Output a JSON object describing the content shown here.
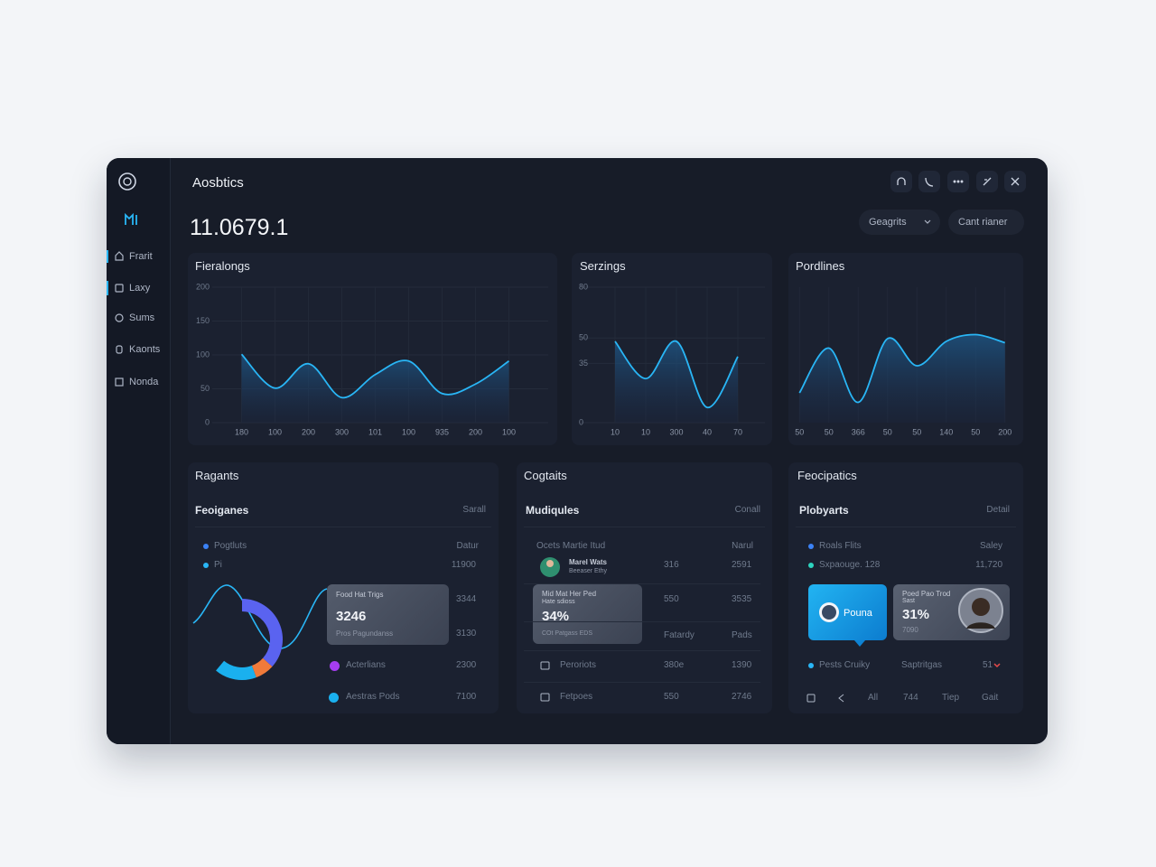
{
  "sidebar": {
    "nav": [
      "Frarit",
      "Laxy",
      "Sums",
      "Kaonts",
      "Nonda"
    ]
  },
  "header": {
    "title": "Aosbtics",
    "total": "11.0679.1",
    "buttons": [
      "Geagrits",
      "Cant rianer"
    ]
  },
  "chart_data": [
    {
      "type": "area",
      "title": "Fieralongs",
      "categories": [
        "180",
        "100",
        "200",
        "300",
        "101",
        "100",
        "935",
        "200",
        "100"
      ],
      "values": [
        101,
        51,
        87,
        37,
        71,
        91,
        43,
        57,
        91
      ],
      "ylim": [
        0,
        200
      ],
      "yticks": [
        0,
        50,
        100,
        150,
        200
      ],
      "color": "#29b6f6",
      "grid": true
    },
    {
      "type": "area",
      "title": "Serzings",
      "categories": [
        "10",
        "10",
        "300",
        "40",
        "70"
      ],
      "values": [
        48,
        26,
        48,
        9,
        39
      ],
      "ylim": [
        0,
        80
      ],
      "yticks": [
        0,
        35,
        50,
        80
      ],
      "color": "#29b6f6",
      "grid": true
    },
    {
      "type": "area",
      "title": "Pordlines",
      "categories": [
        "50",
        "50",
        "366",
        "50",
        "50",
        "140",
        "50",
        "200"
      ],
      "values": [
        22,
        55,
        15,
        62,
        42,
        60,
        65,
        59
      ],
      "ylim": [
        0,
        100
      ],
      "color": "#29b6f6",
      "grid": true
    }
  ],
  "panels": [
    {
      "title": "Ragants",
      "subtitle": "Feoiganes",
      "action": "Sarall",
      "head": [
        "Pogtluts",
        "Datur"
      ],
      "row": [
        "Pi",
        "11900"
      ],
      "card": {
        "label": "Food Hat Trigs",
        "value": "3246",
        "note": "Pros Pagundanss"
      },
      "side": [
        "3344",
        "3130"
      ],
      "legend": [
        [
          "Acterlians",
          "2300"
        ],
        [
          "Aestras Pods",
          "7100"
        ]
      ],
      "donut": {
        "values": [
          48,
          10,
          22
        ],
        "colors": [
          "#5a63f0",
          "#f07a3a",
          "#1ab0ee"
        ]
      }
    },
    {
      "title": "Cogtaits",
      "subtitle": "Mudiqules",
      "action": "Conall",
      "head": [
        "Ocets Martie Itud",
        "Narul"
      ],
      "person": {
        "name": "Marel Wats",
        "role": "Beeaser Ethy",
        "values": [
          "316",
          "2591"
        ]
      },
      "card": {
        "label": "Mid Mat Her Ped",
        "sub": "Hate sdioss",
        "value": "34%",
        "note": "COt Patgass EDS"
      },
      "rows": [
        [
          "550",
          "3535"
        ],
        [
          "Fatardy",
          "Pads"
        ],
        [
          "Peroriots",
          "380e",
          "1390"
        ],
        [
          "Fetpoes",
          "550",
          "2746"
        ]
      ]
    },
    {
      "title": "Feocipatics",
      "subtitle": "Plobyarts",
      "action": "Detail",
      "head": [
        "Roals Flits",
        "Saley"
      ],
      "row": [
        "Sxpaouge. 128",
        "11,720"
      ],
      "badge": "Pouna",
      "card": {
        "label": "Poed Pao Trod",
        "sub": "Sast",
        "value": "31%",
        "note": "7090"
      },
      "status": [
        "Pests Cruiky",
        "Saptritgas",
        "51"
      ],
      "footer": [
        "All",
        "744",
        "Tiep",
        "Gait"
      ]
    }
  ]
}
